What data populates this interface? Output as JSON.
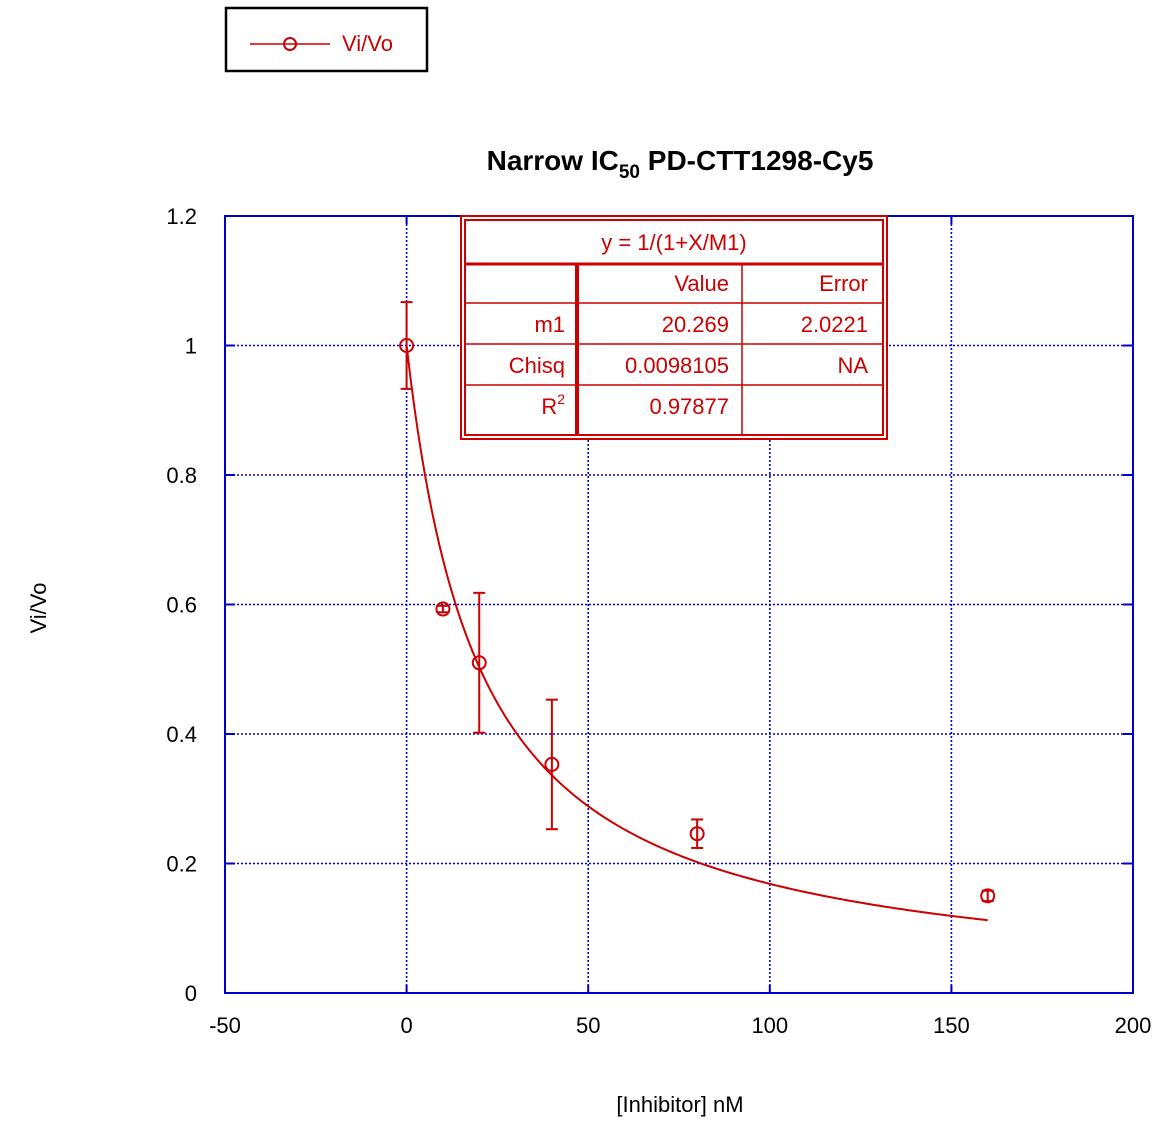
{
  "chart_data": {
    "type": "scatter",
    "title": {
      "prefix": "Narrow IC",
      "subscript": "50",
      "suffix": " PD-CTT1298-Cy5"
    },
    "xlabel": "[Inhibitor] nM",
    "ylabel": "Vi/Vo",
    "xlim": [
      -50,
      200
    ],
    "ylim": [
      0,
      1.2
    ],
    "xticks": [
      -50,
      0,
      50,
      100,
      150,
      200
    ],
    "yticks": [
      0,
      0.2,
      0.4,
      0.6,
      0.8,
      1,
      1.2
    ],
    "xtick_labels": [
      "-50",
      "0",
      "50",
      "100",
      "150",
      "200"
    ],
    "ytick_labels": [
      "0",
      "0.2",
      "0.4",
      "0.6",
      "0.8",
      "1",
      "1.2"
    ],
    "grid": true,
    "legend": {
      "position": "top-left",
      "entries": [
        "Vi/Vo"
      ]
    },
    "series": [
      {
        "name": "Vi/Vo",
        "color": "#cc0000",
        "marker": "open-circle",
        "x": [
          0,
          10,
          20,
          40,
          80,
          160
        ],
        "y": [
          1.0,
          0.593,
          0.51,
          0.353,
          0.246,
          0.15
        ],
        "error": [
          0.067,
          0.005,
          0.108,
          0.1,
          0.022,
          0.008
        ]
      }
    ],
    "fit": {
      "equation": "y = 1/(1+X/M1)",
      "m1": 20.269,
      "x_range": [
        0,
        160
      ],
      "color": "#cc0000",
      "table": {
        "header": [
          "",
          "Value",
          "Error"
        ],
        "rows": [
          {
            "label": "m1",
            "value": "20.269",
            "error": "2.0221"
          },
          {
            "label": "Chisq",
            "value": "0.0098105",
            "error": "NA"
          },
          {
            "label": "R",
            "label_sup": "2",
            "value": "0.97877",
            "error": ""
          }
        ]
      }
    },
    "colors": {
      "data": "#cc0000",
      "axes": "#0000cc",
      "grid": "#0000cc"
    }
  }
}
